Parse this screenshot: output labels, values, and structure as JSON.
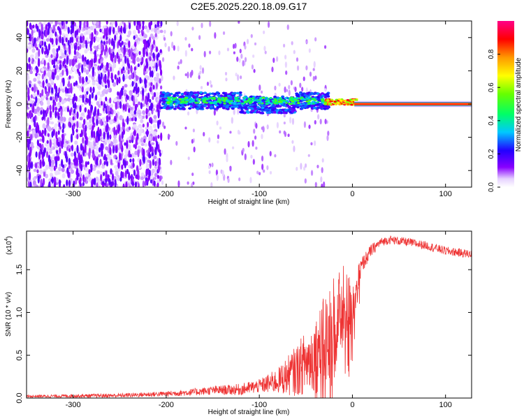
{
  "title": "C2E5.2025.220.18.09.G17",
  "chart_data": [
    {
      "type": "heatmap",
      "xlabel": "Height of straight line (km)",
      "ylabel": "Frequency (Hz)",
      "xlim": [
        -350,
        128
      ],
      "ylim": [
        -50,
        50
      ],
      "xticks": [
        "-300",
        "-200",
        "-100",
        "0",
        "100"
      ],
      "yticks": [
        "-40",
        "-20",
        "0",
        "20",
        "40"
      ],
      "colorbar": {
        "label": "Normalized spectral amplitude",
        "range": [
          0,
          1
        ],
        "ticks": [
          "0.0",
          "0.2",
          "0.4",
          "0.6",
          "0.8"
        ]
      },
      "description_regions": [
        {
          "x_range": [
            -350,
            -205
          ],
          "freq_range": [
            -50,
            50
          ],
          "amplitude": "low (noise)"
        },
        {
          "x_range": [
            -205,
            -30
          ],
          "freq_range": [
            -8,
            8
          ],
          "amplitude": "0.2-0.5"
        },
        {
          "x_range": [
            -30,
            5
          ],
          "freq_range": [
            -2,
            3
          ],
          "amplitude": "0.6-0.9"
        },
        {
          "x_range": [
            5,
            128
          ],
          "freq_center": 0,
          "amplitude": 1.0
        }
      ]
    },
    {
      "type": "line",
      "xlabel": "Height of straight line (km)",
      "ylabel": "SNR (10 * v/v)",
      "y_multiplier": "(x10",
      "y_multiplier_exp": "4",
      "y_multiplier_close": ")",
      "xlim": [
        -350,
        128
      ],
      "ylim": [
        0,
        1.95
      ],
      "xticks": [
        "-300",
        "-200",
        "-100",
        "0",
        "100"
      ],
      "yticks": [
        "0.0",
        "0.5",
        "1.0",
        "1.5"
      ],
      "color": "#ee3333",
      "profile": {
        "x": [
          -350,
          -250,
          -200,
          -170,
          -150,
          -120,
          -100,
          -80,
          -60,
          -50,
          -40,
          -30,
          -20,
          -15,
          -10,
          -5,
          0,
          5,
          10,
          20,
          30,
          40,
          60,
          80,
          100,
          128
        ],
        "y": [
          0.02,
          0.03,
          0.05,
          0.07,
          0.09,
          0.1,
          0.14,
          0.2,
          0.32,
          0.42,
          0.5,
          0.65,
          0.85,
          1.0,
          1.05,
          1.05,
          1.1,
          1.3,
          1.55,
          1.72,
          1.82,
          1.85,
          1.82,
          1.78,
          1.72,
          1.68
        ]
      },
      "noise": {
        "x": [
          -350,
          -200,
          -150,
          -100,
          -80,
          -60,
          -40,
          -30,
          -20,
          -10,
          0,
          10,
          30,
          128
        ],
        "amp": [
          0.015,
          0.03,
          0.05,
          0.08,
          0.15,
          0.3,
          0.45,
          0.55,
          0.65,
          0.5,
          0.35,
          0.1,
          0.05,
          0.05
        ]
      }
    }
  ]
}
